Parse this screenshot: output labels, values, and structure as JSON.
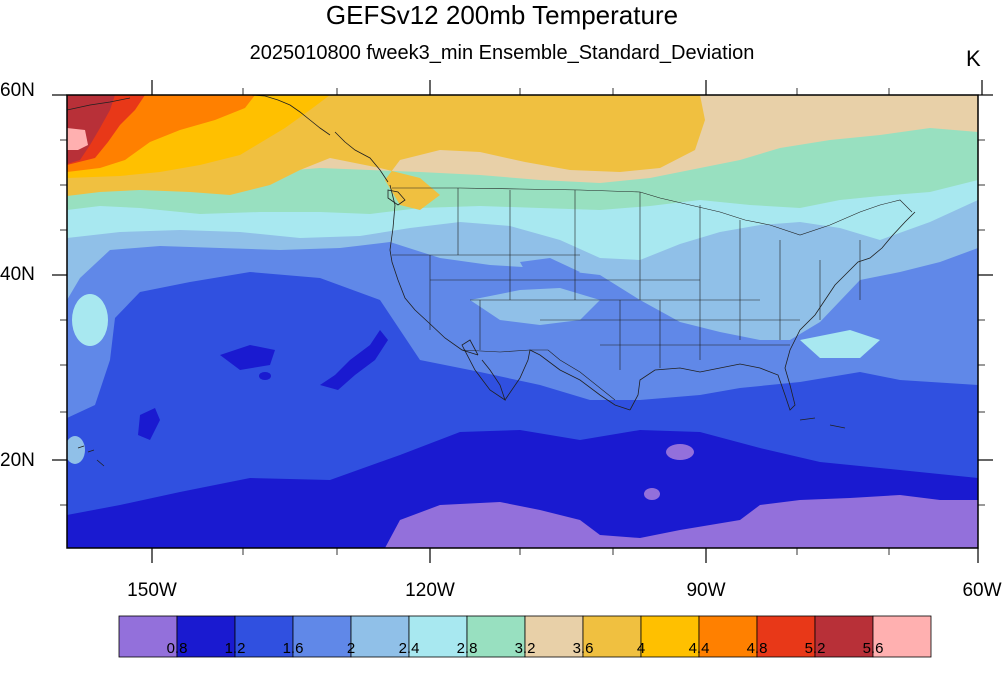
{
  "title": "GEFSv12 200mb Temperature",
  "subtitle": "2025010800 fweek3_min Ensemble_Standard_Deviation",
  "units": "K",
  "lat_labels": [
    "60N",
    "40N",
    "20N"
  ],
  "lon_labels": [
    "150W",
    "120W",
    "90W",
    "60W"
  ],
  "colorbar": {
    "labels": [
      "0.8",
      "1.2",
      "1.6",
      "2",
      "2.4",
      "2.8",
      "3.2",
      "3.6",
      "4",
      "4.4",
      "4.8",
      "5.2",
      "5.6"
    ],
    "colors": [
      "#9370db",
      "#1a1ad0",
      "#3050e0",
      "#6088e8",
      "#90c0e8",
      "#a8e8f0",
      "#98e0c0",
      "#e8d0a8",
      "#f0c040",
      "#ffc000",
      "#ff8000",
      "#e83818",
      "#b83038",
      "#ffb0b0"
    ]
  },
  "map_region": {
    "lon_min": -160,
    "lon_max": -60,
    "lat_min": 10,
    "lat_max": 60
  }
}
